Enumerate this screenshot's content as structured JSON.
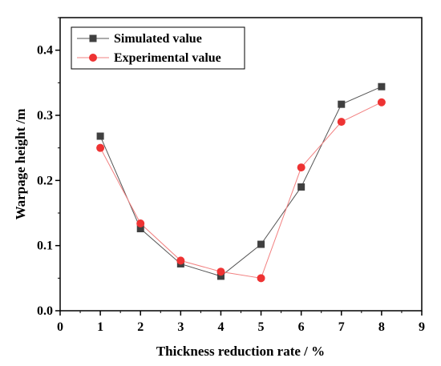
{
  "chart_data": {
    "type": "line",
    "xlabel": "Thickness reduction rate / %",
    "ylabel": "Warpage height /m",
    "xlim": [
      0,
      9
    ],
    "ylim": [
      0,
      0.45
    ],
    "x_ticks": [
      "0",
      "1",
      "2",
      "3",
      "4",
      "5",
      "6",
      "7",
      "8",
      "9"
    ],
    "y_ticks": [
      "0.0",
      "0.1",
      "0.2",
      "0.3",
      "0.4"
    ],
    "grid": false,
    "legend_position": "top-left",
    "x": [
      1,
      2,
      3,
      4,
      5,
      6,
      7,
      8
    ],
    "series": [
      {
        "name": "Simulated value",
        "marker": "square",
        "color": "#404040",
        "line_color": "#555555",
        "values": [
          0.268,
          0.126,
          0.072,
          0.053,
          0.102,
          0.19,
          0.317,
          0.344
        ]
      },
      {
        "name": "Experimental value",
        "marker": "circle",
        "color": "#ee3333",
        "line_color": "#f28080",
        "values": [
          0.25,
          0.134,
          0.077,
          0.06,
          0.05,
          0.22,
          0.29,
          0.32
        ]
      }
    ]
  }
}
